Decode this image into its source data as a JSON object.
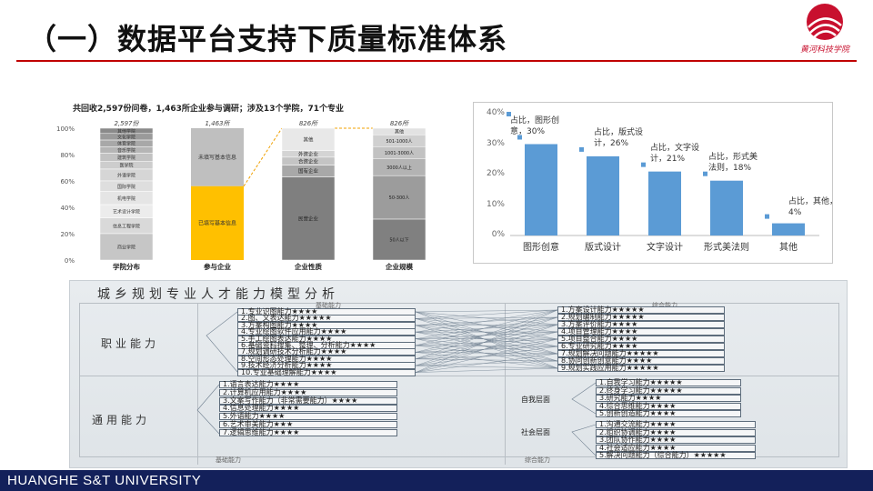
{
  "slide": {
    "title": "（一）数据平台支持下质量标准体系",
    "logo_text": "黄河科技学院",
    "footer": "HUANGHE S&T UNIVERSITY",
    "accent_color": "#c00000",
    "footer_color": "#13205a"
  },
  "survey": {
    "caption": "共回收2,597份问卷，1,463所企业参与调研；涉及13个学院，71个专业",
    "totals": [
      "2,597份",
      "1,463所",
      "826所",
      "826所"
    ],
    "y_ticks": [
      "100%",
      "80%",
      "60%",
      "40%",
      "20%",
      "0%"
    ],
    "categories": [
      "学院分布",
      "参与企业",
      "企业性质",
      "企业规模"
    ],
    "college_segments": [
      "其他学院",
      "文化学院",
      "体育学院",
      "音乐学院",
      "建筑学院",
      "医学院",
      "外语学院",
      "国际学院",
      "机电学院",
      "艺术设计学院",
      "信息工程学院",
      "商业学院"
    ],
    "enterprise_segments": [
      "未填写基本信息",
      "已填写基本信息"
    ],
    "enterprise_filled_fraction": 0.56,
    "nature_segments": [
      "其他",
      "外资企业",
      "合资企业",
      "国有企业",
      "民营企业"
    ],
    "size_segments": [
      "其他",
      "501-1000人",
      "1001-3000人",
      "3000人以上",
      "50-300人",
      "50人以下"
    ]
  },
  "chart_data": {
    "type": "bar",
    "categories": [
      "图形创意",
      "版式设计",
      "文字设计",
      "形式美法则",
      "其他"
    ],
    "values": [
      30,
      26,
      21,
      18,
      4
    ],
    "series": [
      {
        "name": "占比",
        "values": [
          30,
          26,
          21,
          18,
          4
        ]
      }
    ],
    "data_labels": [
      "占比，图形创意，30%",
      "占比，版式设计，26%",
      "占比，文字设计，21%",
      "占比，形式美法则，18%",
      "占比，其他，4%"
    ],
    "y_ticks": [
      "40%",
      "30%",
      "20%",
      "10%",
      "0%"
    ],
    "ylim": [
      0,
      40
    ],
    "grid": false,
    "bar_color": "#5b9bd5"
  },
  "model": {
    "title": "城乡规划专业人才能力模型分析",
    "col_basic": "基础能力",
    "col_comprehensive": "综合能力",
    "row_professional": "职业能力",
    "row_general": "通用能力",
    "footer_basic": "基础能力",
    "footer_comprehensive": "综合能力",
    "professional_basic": [
      "1.专业识图能力★★★★",
      "2.图、文表达能力★★★★★",
      "3.方案构图能力★★★★",
      "4.专业绘图软件应用能力★★★★",
      "5.手工绘图表达能力★★★★",
      "6.基础资料搜集、整理、分析能力★★★★",
      "7.规划调研技术分析能力★★★★",
      "8.空间形态处理能力★★★★",
      "9.技术经济分析能力★★★★",
      "10.专业基础理解能力★★★★"
    ],
    "professional_comprehensive": [
      "1.方案设计能力★★★★★",
      "2.规划编制能力★★★★★",
      "3.方案评价能力★★★★",
      "4.项目管理能力★★★★",
      "5.项目整合能力★★★★",
      "6.专业研究能力★★★★",
      "7.规划解决问题能力★★★★★",
      "8.协同创新创意能力★★★★",
      "9.规划实践应用能力★★★★★"
    ],
    "general_basic": [
      "1.语言表达能力★★★★",
      "2.计算机应用能力★★★★",
      "3.文案写作能力（非常需要能力）★★★★",
      "4.信息处理能力★★★★",
      "5.外语能力★★★★",
      "6.艺术审美能力★★★",
      "7.逻辑思维能力★★★★"
    ],
    "self_level": "自我层面",
    "social_level": "社会层面",
    "general_comprehensive": [
      "1.自我学习能力★★★★★",
      "2.终身学习能力★★★★★",
      "3.研究能力★★★★",
      "4.综合思维能力★★★★",
      "5.创新创造能力★★★★",
      "1.沟通交流能力★★★★",
      "2.组织协调能力★★★★",
      "3.团队协作能力★★★★",
      "4.社会适应能力★★★★",
      "5.解决问题能力（综合能力）★★★★★"
    ]
  }
}
